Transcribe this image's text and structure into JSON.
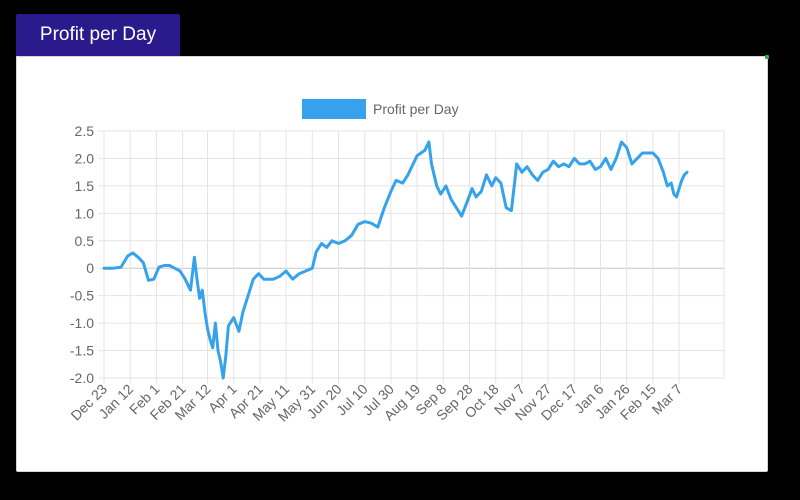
{
  "panel": {
    "tab_title": "Profit per Day"
  },
  "chart_data": {
    "type": "line",
    "title": "",
    "xlabel": "",
    "ylabel": "",
    "legend": {
      "position": "top",
      "labels": [
        "Profit per Day"
      ]
    },
    "grid": true,
    "colors": {
      "series": "#36a2eb",
      "grid": "#e4e4e4",
      "zero_line": "#c8c8c8",
      "tick": "#666666",
      "tab_bg": "#2b1a8c"
    },
    "ylim": [
      -2.0,
      2.5
    ],
    "y_ticks": [
      "2.5",
      "2.0",
      "1.5",
      "1.0",
      "0.5",
      "0",
      "-0.5",
      "-1.0",
      "-1.5",
      "-2.0"
    ],
    "x_ticks": [
      "Dec 23",
      "Jan 12",
      "Feb 1",
      "Feb 21",
      "Mar 12",
      "Apr 1",
      "Apr 21",
      "May 11",
      "May 31",
      "Jun 20",
      "Jul 10",
      "Jul 30",
      "Aug 19",
      "Sep 8",
      "Sep 28",
      "Oct 18",
      "Nov 7",
      "Nov 27",
      "Dec 17",
      "Jan 6",
      "Jan 26",
      "Feb 15",
      "Mar 7"
    ],
    "series": [
      {
        "name": "Profit per Day",
        "color": "#36a2eb",
        "points": [
          [
            "Dec 23",
            0.0
          ],
          [
            "Dec 30",
            0.0
          ],
          [
            "Jan 5",
            0.02
          ],
          [
            "Jan 10",
            0.22
          ],
          [
            "Jan 14",
            0.28
          ],
          [
            "Jan 18",
            0.2
          ],
          [
            "Jan 22",
            0.1
          ],
          [
            "Jan 26",
            -0.22
          ],
          [
            "Jan 30",
            -0.2
          ],
          [
            "Feb 3",
            0.02
          ],
          [
            "Feb 7",
            0.05
          ],
          [
            "Feb 11",
            0.05
          ],
          [
            "Feb 15",
            0.0
          ],
          [
            "Feb 19",
            -0.05
          ],
          [
            "Feb 23",
            -0.2
          ],
          [
            "Feb 27",
            -0.4
          ],
          [
            "Mar 2",
            0.2
          ],
          [
            "Mar 4",
            -0.2
          ],
          [
            "Mar 6",
            -0.55
          ],
          [
            "Mar 8",
            -0.4
          ],
          [
            "Mar 10",
            -0.8
          ],
          [
            "Mar 12",
            -1.1
          ],
          [
            "Mar 14",
            -1.3
          ],
          [
            "Mar 16",
            -1.45
          ],
          [
            "Mar 18",
            -1.0
          ],
          [
            "Mar 20",
            -1.5
          ],
          [
            "Mar 22",
            -1.7
          ],
          [
            "Mar 24",
            -2.0
          ],
          [
            "Mar 26",
            -1.6
          ],
          [
            "Mar 28",
            -1.05
          ],
          [
            "Apr 1",
            -0.9
          ],
          [
            "Apr 5",
            -1.15
          ],
          [
            "Apr 8",
            -0.8
          ],
          [
            "Apr 12",
            -0.5
          ],
          [
            "Apr 16",
            -0.2
          ],
          [
            "Apr 20",
            -0.1
          ],
          [
            "Apr 24",
            -0.2
          ],
          [
            "May 1",
            -0.2
          ],
          [
            "May 6",
            -0.15
          ],
          [
            "May 11",
            -0.05
          ],
          [
            "May 16",
            -0.2
          ],
          [
            "May 21",
            -0.1
          ],
          [
            "May 26",
            -0.05
          ],
          [
            "May 31",
            0.0
          ],
          [
            "Jun 3",
            0.3
          ],
          [
            "Jun 7",
            0.45
          ],
          [
            "Jun 11",
            0.38
          ],
          [
            "Jun 15",
            0.5
          ],
          [
            "Jun 20",
            0.45
          ],
          [
            "Jun 25",
            0.5
          ],
          [
            "Jun 30",
            0.6
          ],
          [
            "Jul 5",
            0.8
          ],
          [
            "Jul 10",
            0.85
          ],
          [
            "Jul 15",
            0.82
          ],
          [
            "Jul 20",
            0.75
          ],
          [
            "Jul 25",
            1.1
          ],
          [
            "Jul 30",
            1.4
          ],
          [
            "Aug 3",
            1.6
          ],
          [
            "Aug 8",
            1.55
          ],
          [
            "Aug 12",
            1.7
          ],
          [
            "Aug 16",
            1.9
          ],
          [
            "Aug 19",
            2.05
          ],
          [
            "Aug 22",
            2.1
          ],
          [
            "Aug 25",
            2.15
          ],
          [
            "Aug 28",
            2.3
          ],
          [
            "Aug 30",
            1.9
          ],
          [
            "Sep 1",
            1.7
          ],
          [
            "Sep 3",
            1.5
          ],
          [
            "Sep 6",
            1.35
          ],
          [
            "Sep 10",
            1.5
          ],
          [
            "Sep 14",
            1.25
          ],
          [
            "Sep 18",
            1.1
          ],
          [
            "Sep 22",
            0.95
          ],
          [
            "Sep 26",
            1.2
          ],
          [
            "Sep 30",
            1.45
          ],
          [
            "Oct 3",
            1.3
          ],
          [
            "Oct 7",
            1.4
          ],
          [
            "Oct 11",
            1.7
          ],
          [
            "Oct 15",
            1.5
          ],
          [
            "Oct 18",
            1.65
          ],
          [
            "Oct 22",
            1.55
          ],
          [
            "Oct 26",
            1.1
          ],
          [
            "Oct 30",
            1.05
          ],
          [
            "Nov 3",
            1.9
          ],
          [
            "Nov 7",
            1.75
          ],
          [
            "Nov 11",
            1.85
          ],
          [
            "Nov 15",
            1.7
          ],
          [
            "Nov 19",
            1.6
          ],
          [
            "Nov 23",
            1.75
          ],
          [
            "Nov 27",
            1.8
          ],
          [
            "Dec 1",
            1.95
          ],
          [
            "Dec 5",
            1.85
          ],
          [
            "Dec 9",
            1.9
          ],
          [
            "Dec 13",
            1.85
          ],
          [
            "Dec 17",
            2.0
          ],
          [
            "Dec 21",
            1.9
          ],
          [
            "Dec 25",
            1.9
          ],
          [
            "Dec 29",
            1.95
          ],
          [
            "Jan 2",
            1.8
          ],
          [
            "Jan 6",
            1.85
          ],
          [
            "Jan 10",
            2.0
          ],
          [
            "Jan 14",
            1.8
          ],
          [
            "Jan 18",
            2.0
          ],
          [
            "Jan 22",
            2.3
          ],
          [
            "Jan 26",
            2.2
          ],
          [
            "Jan 30",
            1.9
          ],
          [
            "Feb 3",
            2.0
          ],
          [
            "Feb 7",
            2.1
          ],
          [
            "Feb 11",
            2.1
          ],
          [
            "Feb 15",
            2.1
          ],
          [
            "Feb 19",
            2.0
          ],
          [
            "Feb 23",
            1.75
          ],
          [
            "Feb 26",
            1.5
          ],
          [
            "Mar 1",
            1.55
          ],
          [
            "Mar 3",
            1.35
          ],
          [
            "Mar 5",
            1.3
          ],
          [
            "Mar 7",
            1.45
          ],
          [
            "Mar 9",
            1.6
          ],
          [
            "Mar 11",
            1.7
          ],
          [
            "Mar 13",
            1.75
          ]
        ]
      }
    ]
  }
}
